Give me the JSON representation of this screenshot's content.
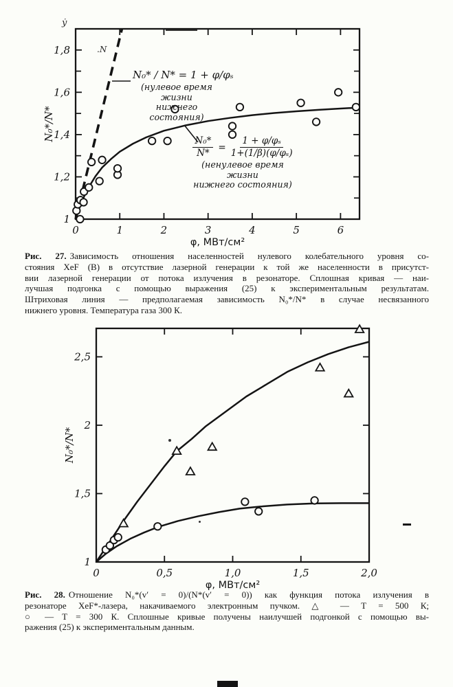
{
  "page": {
    "bg": "#fcfdf9",
    "ink": "#141414"
  },
  "fig27": {
    "caption_label": "Рис. 27.",
    "caption_lines": [
      "Зависимость отношения населенностей нулевого колебательного уровня со-",
      "стояния XeF (B) в отсутствие лазерной генерации к той же населенности в присутст-",
      "вии лазерной генерации от потока излучения в резонаторе. Сплошная кривая — наи-",
      "лучшая подгонка с помощью выражения (25) к экспериментальным результатам.",
      "Штриховая линия — предполагаемая зависимость N₀*/N* в случае несвязанного",
      "нижнего уровня. Температура газа 300 К."
    ],
    "annotations": {
      "f1_formula": "N₀* / N* = 1 + φ/φₛ",
      "f1_note1": "(нулевое время жизни",
      "f1_note2": "нижнего состояния)",
      "f2_lhs_num": "N₀*",
      "f2_lhs_den": "N*",
      "f2_eq": "=",
      "f2_num": "1 + φ/φₛ",
      "f2_den": "1+(1/β)(φ/φₛ)",
      "f2_note1": "(ненулевое время жизни",
      "f2_note2": "нижнего состояния)"
    },
    "artifacts": {
      "stray_y": "ẏ",
      "stray_n": ".N"
    }
  },
  "fig28": {
    "caption_label": "Рис. 28.",
    "caption_lines": [
      "Отношение N₀*(v′ = 0)/(N*(v′ = 0)) как функция потока излучения в",
      "резонаторе XeF*-лазера, накачиваемого электронным пучком. △ — T = 500 К;",
      "○ — T = 300 К. Сплошные кривые получены наилучшей подгонкой с помощью вы-",
      "ражения (25) к экспериментальным данным."
    ]
  },
  "chart_data": [
    {
      "figure": "Рис. 27",
      "type": "scatter",
      "title": "",
      "xlabel": "φ, МВт/см²",
      "ylabel": "N₀*/N*",
      "xlim": [
        0,
        6.43
      ],
      "ylim": [
        1,
        1.9
      ],
      "grid": false,
      "legend_position": "none",
      "xticks": [
        {
          "v": 0,
          "label": "0"
        },
        {
          "v": 1,
          "label": "1"
        },
        {
          "v": 2,
          "label": "2"
        },
        {
          "v": 3,
          "label": "3"
        },
        {
          "v": 4,
          "label": "4"
        },
        {
          "v": 5,
          "label": "5"
        },
        {
          "v": 6,
          "label": "6"
        }
      ],
      "yticks": [
        {
          "v": 1,
          "label": "1"
        },
        {
          "v": 1.2,
          "label": "1,2"
        },
        {
          "v": 1.4,
          "label": "1,4"
        },
        {
          "v": 1.6,
          "label": "1,6"
        },
        {
          "v": 1.8,
          "label": "1,8"
        }
      ],
      "yticks_minor": [
        1.1,
        1.3,
        1.5,
        1.7
      ],
      "dashed_line": [
        [
          0,
          1
        ],
        [
          1.05,
          1.9
        ]
      ],
      "dashed_line_meaning": "N0*/N* = 1 + φ/φs (нулевое время жизни нижнего состояния)",
      "series": [
        {
          "name": "эксперимент, 300 К",
          "marker": "circle",
          "points": [
            [
              0.02,
              1.04
            ],
            [
              0.05,
              1.07
            ],
            [
              0.1,
              1.0
            ],
            [
              0.11,
              1.09
            ],
            [
              0.18,
              1.08
            ],
            [
              0.19,
              1.13
            ],
            [
              0.3,
              1.15
            ],
            [
              0.36,
              1.27
            ],
            [
              0.54,
              1.18
            ],
            [
              0.6,
              1.28
            ],
            [
              0.95,
              1.21
            ],
            [
              0.95,
              1.24
            ],
            [
              1.73,
              1.37
            ],
            [
              2.08,
              1.37
            ],
            [
              2.25,
              1.52
            ],
            [
              3.55,
              1.4
            ],
            [
              3.55,
              1.44
            ],
            [
              3.72,
              1.53
            ],
            [
              5.1,
              1.55
            ],
            [
              5.45,
              1.46
            ],
            [
              5.95,
              1.6
            ],
            [
              6.35,
              1.53
            ]
          ],
          "curve": [
            [
              0,
              1
            ],
            [
              0.1,
              1.061
            ],
            [
              0.2,
              1.111
            ],
            [
              0.3,
              1.152
            ],
            [
              0.45,
              1.203
            ],
            [
              0.6,
              1.244
            ],
            [
              0.8,
              1.284
            ],
            [
              1.0,
              1.319
            ],
            [
              1.3,
              1.357
            ],
            [
              1.6,
              1.387
            ],
            [
              2.0,
              1.418
            ],
            [
              2.5,
              1.444
            ],
            [
              3.0,
              1.464
            ],
            [
              3.5,
              1.479
            ],
            [
              4.0,
              1.492
            ],
            [
              4.5,
              1.502
            ],
            [
              5.0,
              1.51
            ],
            [
              5.5,
              1.517
            ],
            [
              6.0,
              1.523
            ],
            [
              6.43,
              1.528
            ]
          ],
          "curve_meaning": "подгонка выражения (25): N0*/N* = (1+φ/φs)/(1+(1/β)(φ/φs))"
        }
      ]
    },
    {
      "figure": "Рис. 28",
      "type": "scatter",
      "title": "",
      "xlabel": "φ, МВт/см²",
      "ylabel": "N₀*/N*",
      "xlim": [
        0,
        2.0
      ],
      "ylim": [
        1,
        2.708
      ],
      "grid": false,
      "legend_position": "none",
      "xticks": [
        {
          "v": 0,
          "label": "0"
        },
        {
          "v": 0.5,
          "label": "0,5"
        },
        {
          "v": 1.0,
          "label": "1,0"
        },
        {
          "v": 1.5,
          "label": "1,5"
        },
        {
          "v": 2.0,
          "label": "2,0"
        }
      ],
      "yticks": [
        {
          "v": 1,
          "label": "1"
        },
        {
          "v": 1.5,
          "label": "1,5"
        },
        {
          "v": 2,
          "label": "2"
        },
        {
          "v": 2.5,
          "label": "2,5"
        }
      ],
      "yticks_minor": [],
      "series": [
        {
          "name": "T = 500 К",
          "marker": "triangle",
          "points": [
            [
              0.2,
              1.28
            ],
            [
              0.59,
              1.81
            ],
            [
              0.69,
              1.66
            ],
            [
              0.85,
              1.84
            ],
            [
              1.64,
              2.42
            ],
            [
              1.85,
              2.23
            ],
            [
              1.93,
              2.7
            ]
          ],
          "curve": [
            [
              0,
              1
            ],
            [
              0.1,
              1.15
            ],
            [
              0.2,
              1.3
            ],
            [
              0.3,
              1.44
            ],
            [
              0.4,
              1.57
            ],
            [
              0.5,
              1.7
            ],
            [
              0.59,
              1.81
            ],
            [
              0.7,
              1.9
            ],
            [
              0.8,
              1.99
            ],
            [
              0.95,
              2.1
            ],
            [
              1.1,
              2.21
            ],
            [
              1.25,
              2.3
            ],
            [
              1.4,
              2.39
            ],
            [
              1.55,
              2.46
            ],
            [
              1.7,
              2.52
            ],
            [
              1.85,
              2.57
            ],
            [
              2.0,
              2.61
            ]
          ]
        },
        {
          "name": "T = 300 К",
          "marker": "circle",
          "points": [
            [
              0.07,
              1.09
            ],
            [
              0.1,
              1.12
            ],
            [
              0.13,
              1.16
            ],
            [
              0.16,
              1.18
            ],
            [
              0.45,
              1.26
            ],
            [
              1.09,
              1.44
            ],
            [
              1.19,
              1.37
            ],
            [
              1.6,
              1.45
            ]
          ],
          "curve": [
            [
              0,
              1
            ],
            [
              0.07,
              1.06
            ],
            [
              0.15,
              1.115
            ],
            [
              0.25,
              1.17
            ],
            [
              0.35,
              1.215
            ],
            [
              0.45,
              1.255
            ],
            [
              0.6,
              1.3
            ],
            [
              0.75,
              1.335
            ],
            [
              0.9,
              1.365
            ],
            [
              1.05,
              1.39
            ],
            [
              1.2,
              1.405
            ],
            [
              1.4,
              1.42
            ],
            [
              1.6,
              1.428
            ],
            [
              1.8,
              1.43
            ],
            [
              2.0,
              1.43
            ]
          ]
        }
      ]
    }
  ]
}
